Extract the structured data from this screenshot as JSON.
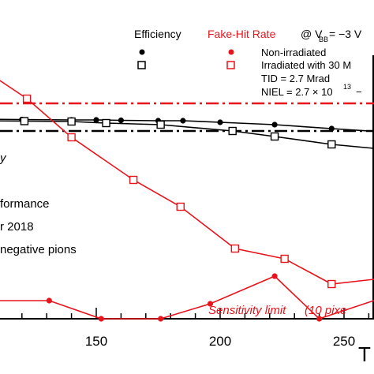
{
  "chart_data": {
    "type": "line",
    "xlabel": "T",
    "x_ticks": [
      150,
      200,
      250
    ],
    "xlim": [
      102,
      270
    ],
    "legend": {
      "efficiency_header": "Efficiency",
      "fakehit_header": "Fake-Hit Rate",
      "condition_header": "@ V",
      "condition_sub": "BB",
      "condition_tail": " = −3 V",
      "entries": [
        {
          "marker": "filled-circle",
          "label": "Non-irradiated"
        },
        {
          "marker": "open-square",
          "label": "Irradiated with 30 M"
        }
      ],
      "tid_label": "TID = 2.7 Mrad",
      "niel_label": "NIEL = 2.7 × 10",
      "niel_exp": "13"
    },
    "annotations": [
      "y",
      "formance",
      "r 2018",
      "negative pions"
    ],
    "sensitivity_label": "Sensitivity limit",
    "sensitivity_tail": "(10 pixe",
    "colors": {
      "efficiency": "#000000",
      "fake_hit": "#e8141c"
    },
    "efficiency_reference_y": 166,
    "fake_hit_reference_y": 131,
    "series": [
      {
        "name": "Non-irradiated",
        "kind": "efficiency",
        "marker": "filled-circle",
        "x": [
          102,
          120,
          140,
          150,
          160,
          175,
          185,
          200,
          222,
          245,
          270
        ],
        "y": [
          151,
          151.5,
          152,
          152,
          152.5,
          153,
          153,
          155,
          158,
          163,
          168
        ]
      },
      {
        "name": "Irradiated with 30 M",
        "kind": "efficiency",
        "marker": "open-square",
        "x": [
          102,
          121,
          140,
          154,
          176,
          205,
          222,
          245,
          262
        ],
        "y": [
          153,
          153.5,
          154,
          156,
          158,
          166,
          173,
          183,
          188
        ]
      },
      {
        "name": "Non-irradiated",
        "kind": "fake_hit",
        "marker": "filled-circle",
        "x": [
          102,
          131,
          152,
          176,
          196,
          222,
          240,
          262,
          270
        ],
        "y": [
          381,
          381,
          404,
          404,
          385,
          350,
          404,
          381,
          381
        ]
      },
      {
        "name": "Irradiated with 30 M",
        "kind": "fake_hit",
        "marker": "open-square",
        "x": [
          102,
          122,
          140,
          165,
          184,
          206,
          226,
          245,
          262,
          270
        ],
        "y": [
          83,
          125,
          174,
          228,
          262,
          315,
          328,
          360,
          354,
          358
        ]
      }
    ]
  }
}
